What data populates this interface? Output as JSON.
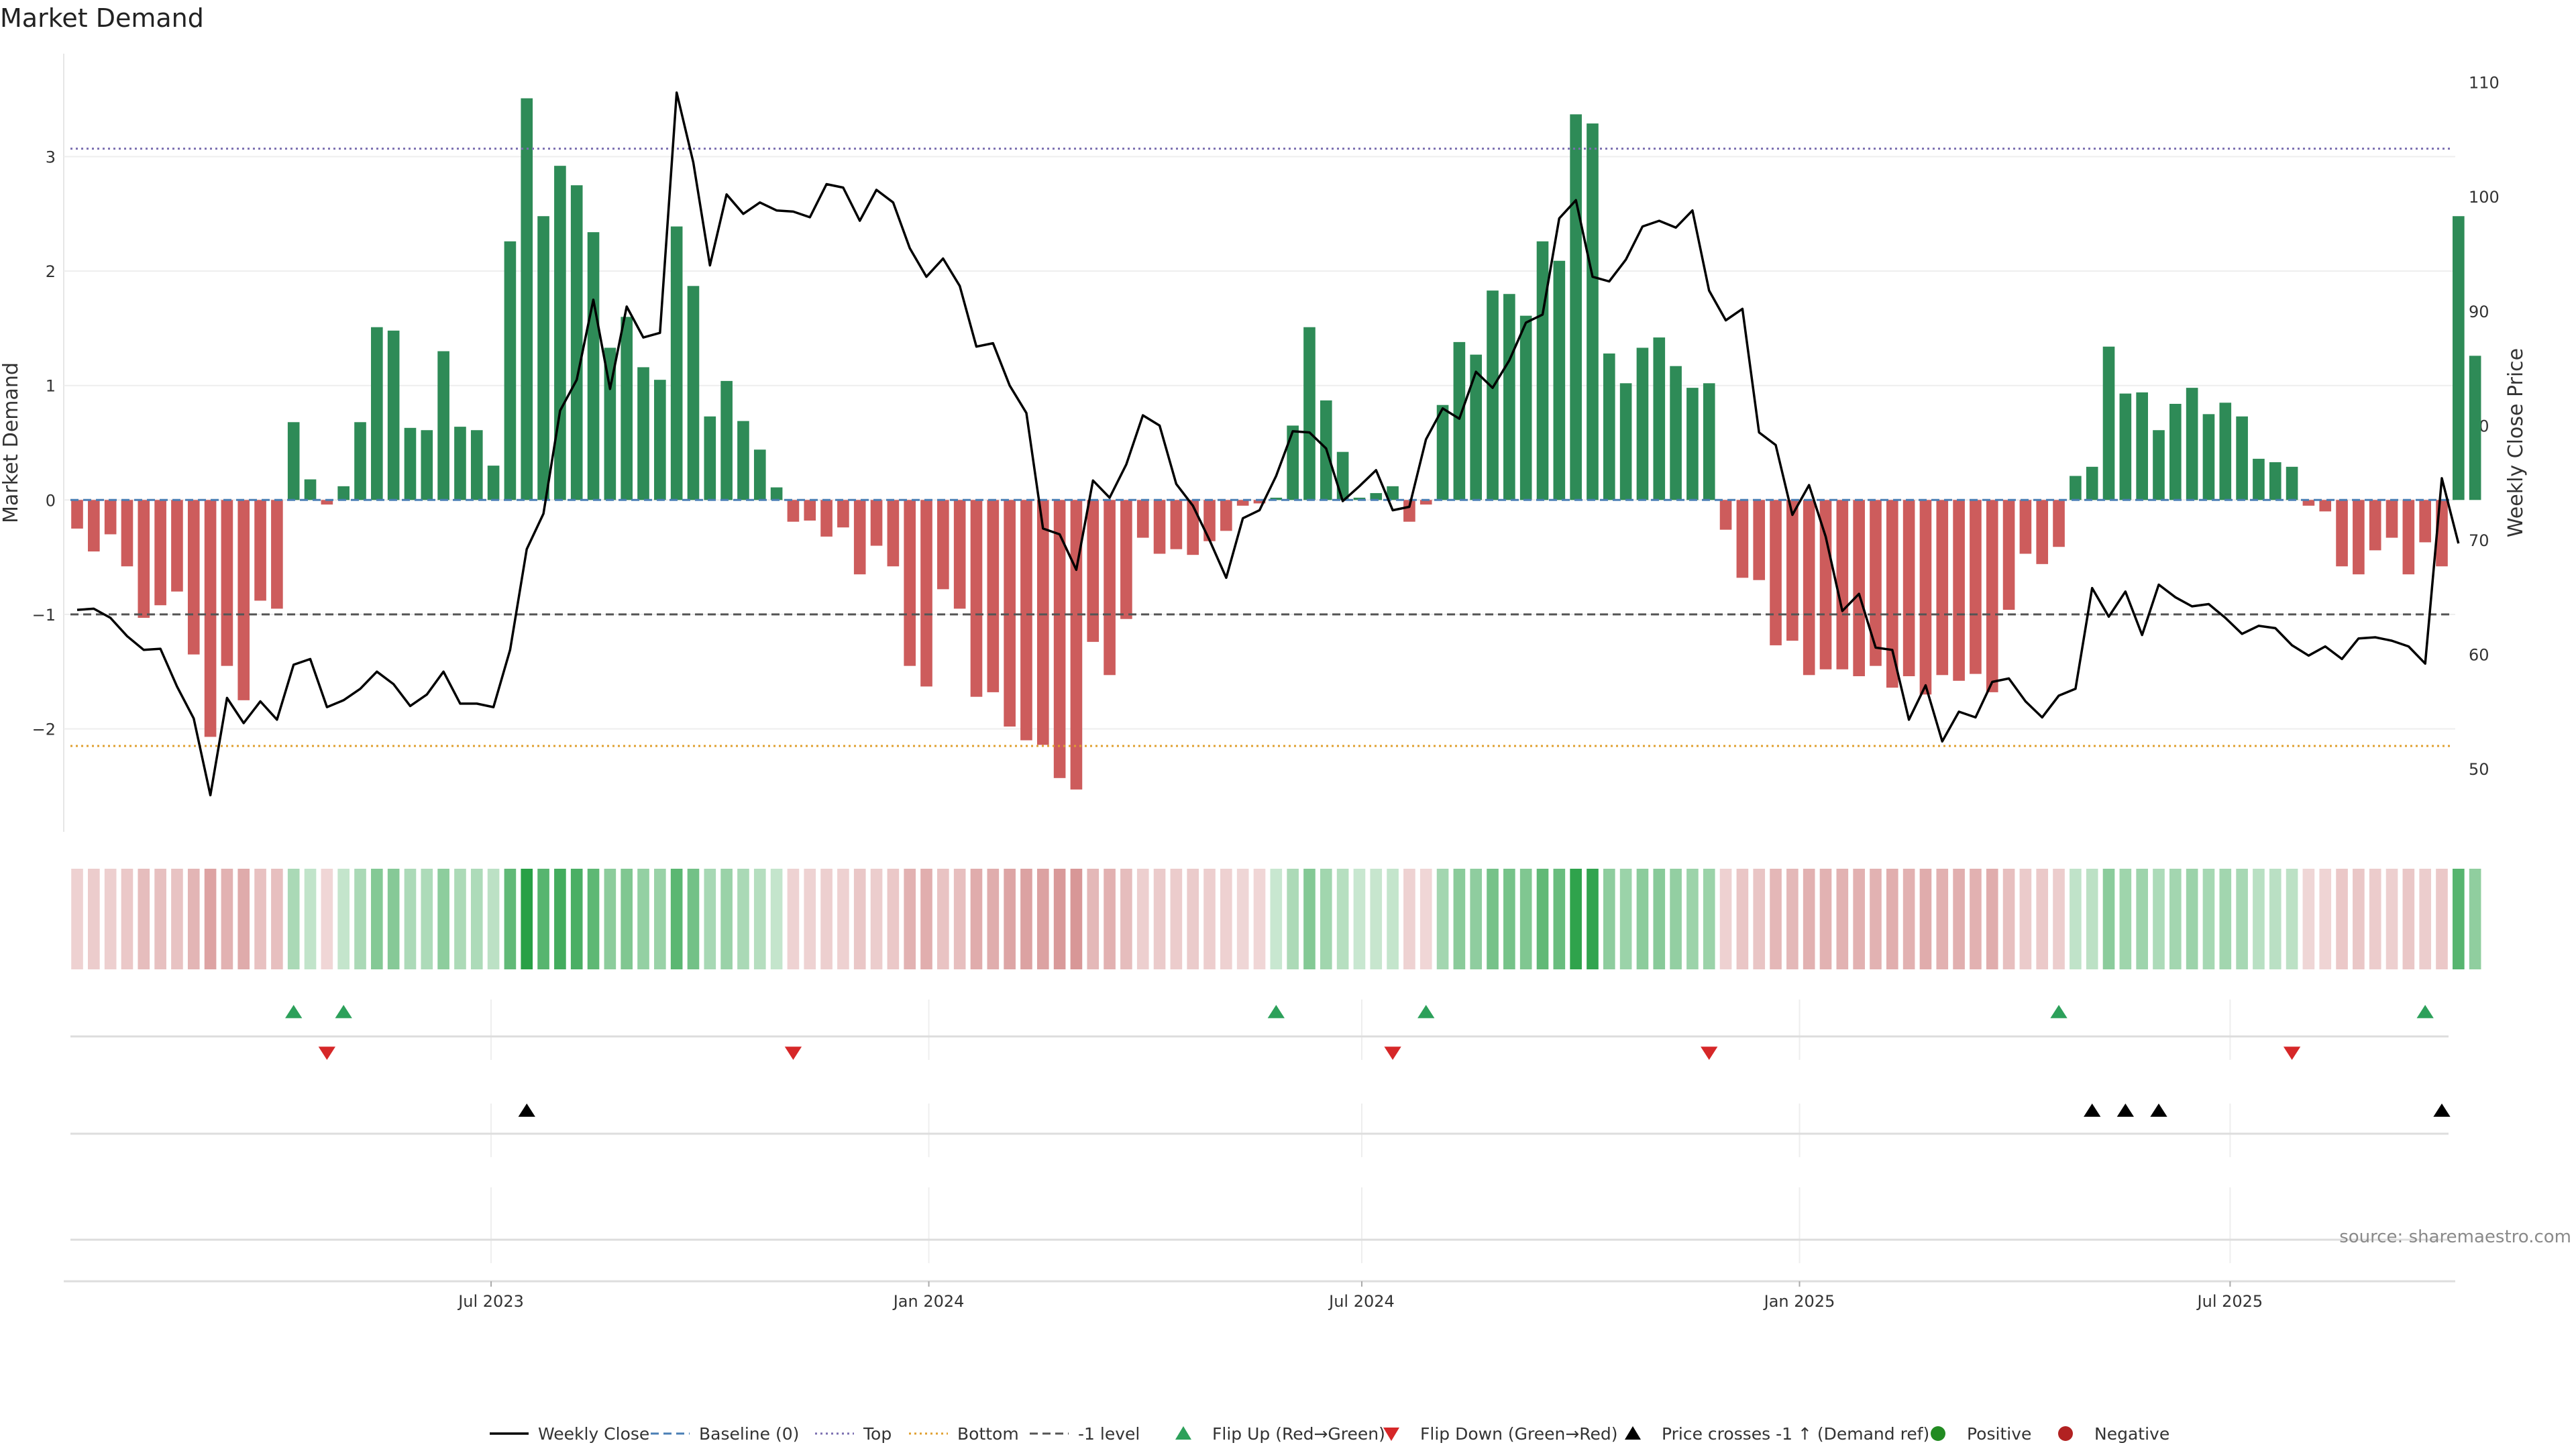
{
  "chart_data": {
    "type": "bar",
    "title": "Market Demand",
    "ylabel": "Market Demand",
    "y2label": "Weekly Close Price",
    "ylim": [
      -2.9,
      3.9
    ],
    "y2lim": [
      44.5,
      112.5
    ],
    "yticks": [
      -2,
      -1,
      0,
      1,
      2,
      3
    ],
    "ytick_labels": [
      "−2",
      "−1",
      "0",
      "1",
      "2",
      "3"
    ],
    "y2ticks": [
      50,
      60,
      70,
      80,
      90,
      100,
      110
    ],
    "ytick2_labels": [
      "50",
      "60",
      "70",
      "80",
      "90",
      "100",
      "110"
    ],
    "x_start": "2023-01-08",
    "x_step_days": 7,
    "x_end": "2025-09-28",
    "xticks": [
      {
        "date": "2023-07-01",
        "label": "Jul 2023"
      },
      {
        "date": "2024-01-01",
        "label": "Jan 2024"
      },
      {
        "date": "2024-07-01",
        "label": "Jul 2024"
      },
      {
        "date": "2025-01-01",
        "label": "Jan 2025"
      },
      {
        "date": "2025-07-01",
        "label": "Jul 2025"
      }
    ],
    "reference_lines": [
      {
        "name": "Top",
        "value": 3.07,
        "color": "#7b6fb0",
        "style": "dotted"
      },
      {
        "name": "Bottom",
        "value": -2.15,
        "color": "#e0a030",
        "style": "dotted"
      },
      {
        "name": "-1 level",
        "value": -1,
        "color": "#555555",
        "style": "dashed"
      },
      {
        "name": "Baseline (0)",
        "value": 0,
        "color": "#4a7fb5",
        "style": "dashed"
      }
    ],
    "grid": true,
    "legend_position": "bottom",
    "colors": {
      "positive": "#2e8b57",
      "negative": "#cd5c5c",
      "price": "#000000",
      "flip_up": "#2ca05a",
      "flip_down": "#d62728"
    },
    "demand": [
      -0.25,
      -0.45,
      -0.3,
      -0.58,
      -1.03,
      -0.92,
      -0.8,
      -1.35,
      -2.07,
      -1.45,
      -1.75,
      -0.88,
      -0.95,
      0.68,
      0.18,
      -0.04,
      0.12,
      0.68,
      1.51,
      1.48,
      0.63,
      0.61,
      1.3,
      0.64,
      0.61,
      0.3,
      2.26,
      3.51,
      2.48,
      2.92,
      2.75,
      2.34,
      1.33,
      1.6,
      1.16,
      1.05,
      2.39,
      1.87,
      0.73,
      1.04,
      0.69,
      0.44,
      0.11,
      -0.19,
      -0.18,
      -0.32,
      -0.24,
      -0.65,
      -0.4,
      -0.58,
      -1.45,
      -1.63,
      -0.78,
      -0.95,
      -1.72,
      -1.68,
      -1.98,
      -2.1,
      -2.14,
      -2.43,
      -2.53,
      -1.24,
      -1.53,
      -1.04,
      -0.33,
      -0.47,
      -0.43,
      -0.48,
      -0.36,
      -0.27,
      -0.05,
      -0.03,
      0.02,
      0.65,
      1.51,
      0.87,
      0.42,
      0.02,
      0.06,
      0.12,
      -0.19,
      -0.04,
      0.83,
      1.38,
      1.27,
      1.83,
      1.8,
      1.61,
      2.26,
      2.09,
      3.37,
      3.29,
      1.28,
      1.02,
      1.33,
      1.42,
      1.17,
      0.98,
      1.02,
      -0.26,
      -0.68,
      -0.7,
      -1.27,
      -1.23,
      -1.53,
      -1.48,
      -1.48,
      -1.54,
      -1.45,
      -1.64,
      -1.54,
      -1.7,
      -1.53,
      -1.58,
      -1.52,
      -1.68,
      -0.96,
      -0.47,
      -0.56,
      -0.41,
      0.21,
      0.29,
      1.34,
      0.93,
      0.94,
      0.61,
      0.84,
      0.98,
      0.75,
      0.85,
      0.73,
      0.36,
      0.33,
      0.29,
      -0.05,
      -0.1,
      -0.58,
      -0.65,
      -0.44,
      -0.33,
      -0.65,
      -0.37,
      -0.58,
      2.48,
      1.26
    ],
    "weekly_close": [
      63.9,
      64.0,
      63.2,
      61.6,
      60.4,
      60.5,
      57.2,
      54.4,
      47.7,
      56.2,
      54.0,
      55.9,
      54.3,
      59.1,
      59.6,
      55.4,
      56.0,
      57.0,
      58.5,
      57.4,
      55.5,
      56.5,
      58.5,
      55.7,
      55.7,
      55.4,
      60.4,
      69.2,
      72.3,
      81.3,
      84.0,
      91.0,
      83.2,
      90.4,
      87.7,
      88.1,
      109.1,
      103.0,
      94.0,
      100.2,
      98.5,
      99.5,
      98.8,
      98.7,
      98.2,
      101.1,
      100.8,
      97.9,
      100.6,
      99.5,
      95.5,
      93.0,
      94.6,
      92.2,
      86.9,
      87.2,
      83.5,
      81.1,
      71.0,
      70.5,
      67.4,
      75.2,
      73.7,
      76.6,
      80.9,
      80.0,
      74.9,
      73.0,
      70.0,
      66.7,
      71.9,
      72.6,
      75.6,
      79.5,
      79.4,
      78.0,
      73.4,
      74.7,
      76.1,
      72.6,
      72.9,
      78.8,
      81.5,
      80.6,
      84.7,
      83.3,
      85.7,
      89.0,
      89.7,
      98.1,
      99.7,
      93.0,
      92.6,
      94.5,
      97.4,
      97.9,
      97.3,
      98.8,
      91.8,
      89.2,
      90.2,
      79.4,
      78.3,
      72.2,
      74.8,
      70.3,
      63.8,
      65.3,
      60.6,
      60.4,
      54.3,
      57.3,
      52.4,
      55.0,
      54.5,
      57.6,
      57.9,
      55.9,
      54.5,
      56.4,
      57.0,
      65.8,
      63.3,
      65.5,
      61.7,
      66.1,
      65.0,
      64.2,
      64.4,
      63.2,
      61.8,
      62.5,
      62.3,
      60.8,
      59.9,
      60.7,
      59.6,
      61.4,
      61.5,
      61.2,
      60.7,
      59.2,
      75.4,
      69.7
    ],
    "flip_up_idx": [
      13,
      16,
      72,
      81,
      119,
      141
    ],
    "flip_down_idx": [
      15,
      43,
      79,
      98,
      133
    ],
    "price_cross_idx": [
      27,
      121,
      123,
      125,
      142
    ],
    "legend": [
      {
        "label": "Weekly Close",
        "kind": "line",
        "color": "#000000"
      },
      {
        "label": "Baseline (0)",
        "kind": "dash",
        "color": "#4a7fb5"
      },
      {
        "label": "Top",
        "kind": "dot",
        "color": "#7b6fb0"
      },
      {
        "label": "Bottom",
        "kind": "dot",
        "color": "#e0a030"
      },
      {
        "label": "-1 level",
        "kind": "dash",
        "color": "#555555"
      },
      {
        "label": "Flip Up (Red→Green)",
        "kind": "tri-up",
        "color": "#2ca05a"
      },
      {
        "label": "Flip Down (Green→Red)",
        "kind": "tri-down",
        "color": "#d62728"
      },
      {
        "label": "Price crosses -1 ↑ (Demand ref)",
        "kind": "tri-up",
        "color": "#000000"
      },
      {
        "label": "Positive",
        "kind": "dot-marker",
        "color": "#228b22"
      },
      {
        "label": "Negative",
        "kind": "dot-marker",
        "color": "#b22222"
      }
    ],
    "source": "source: sharemaestro.com"
  }
}
